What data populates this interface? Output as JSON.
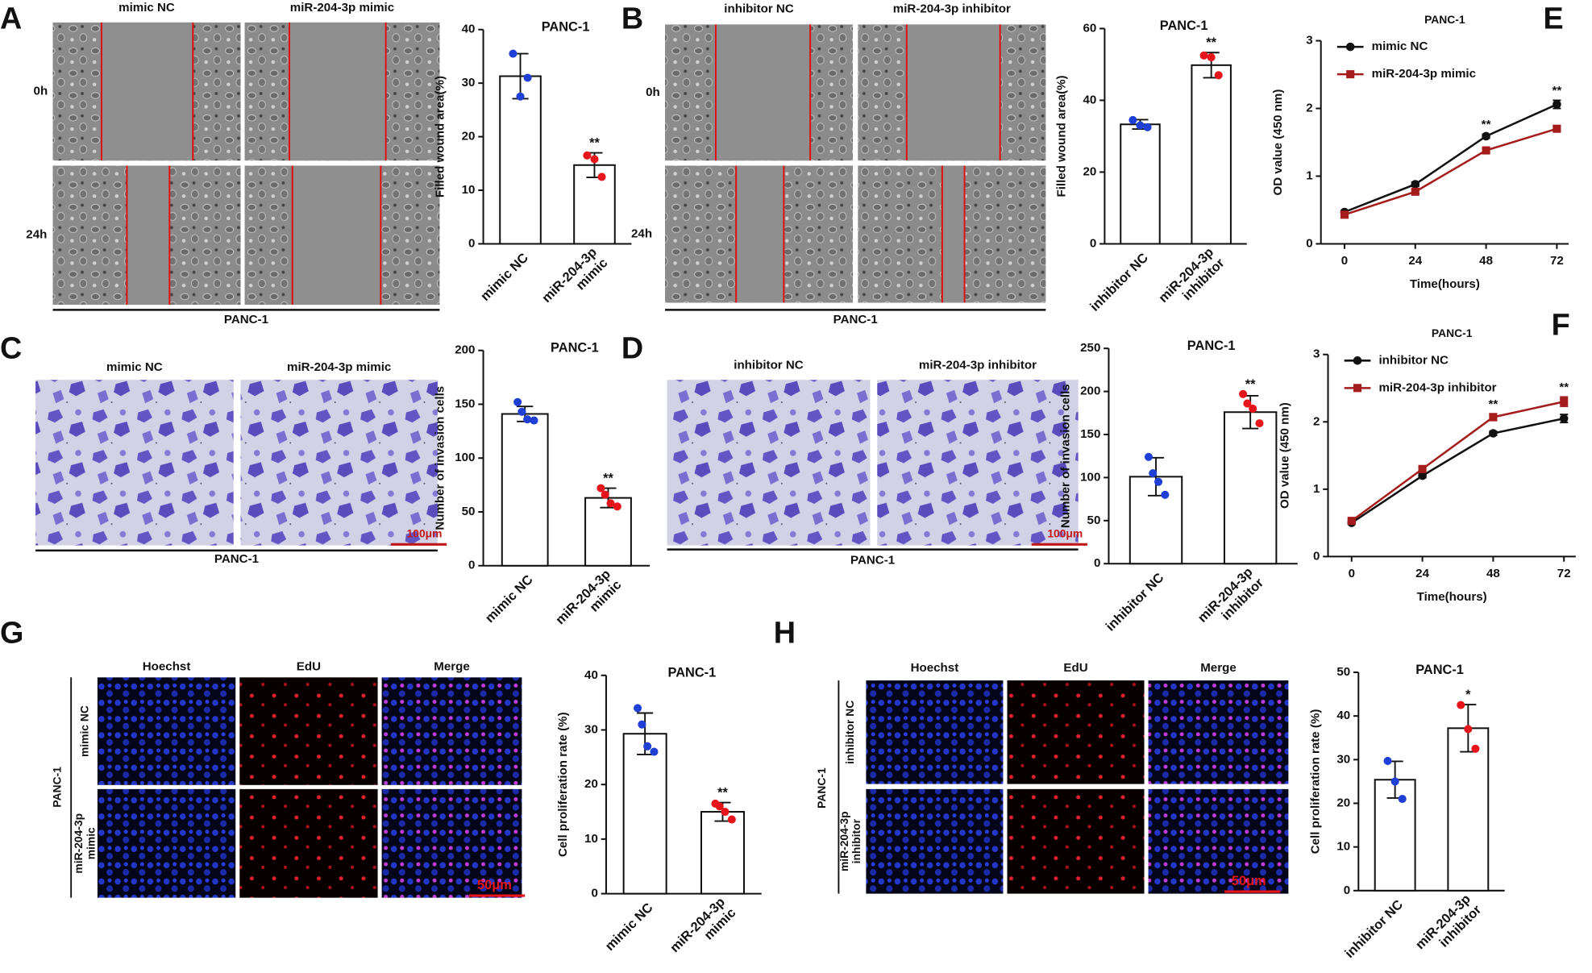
{
  "panels": [
    {
      "letter": "A",
      "column_labels": [
        "mimic NC",
        "miR-204-3p mimic"
      ],
      "row_labels": [
        "0h",
        "24h"
      ],
      "caption": "PANC-1"
    },
    {
      "letter": "B",
      "column_labels": [
        "inhibitor NC",
        "miR-204-3p inhibitor"
      ],
      "row_labels": [
        "0h",
        "24h"
      ],
      "caption": "PANC-1"
    },
    {
      "letter": "C",
      "column_labels": [
        "mimic NC",
        "miR-204-3p mimic"
      ],
      "caption": "PANC-1",
      "scale_bar": "100μm"
    },
    {
      "letter": "D",
      "column_labels": [
        "inhibitor NC",
        "miR-204-3p inhibitor"
      ],
      "caption": "PANC-1",
      "scale_bar": "100μm"
    },
    {
      "letter": "G",
      "column_labels": [
        "Hoechst",
        "EdU",
        "Merge"
      ],
      "row_labels": [
        "mimic NC",
        "miR-204-3p mimic"
      ],
      "caption": "PANC-1",
      "scale_bar": "50μm"
    },
    {
      "letter": "H",
      "column_labels": [
        "Hoechst",
        "EdU",
        "Merge"
      ],
      "row_labels": [
        "inhibitor NC",
        "miR-204-3p inhibitor"
      ],
      "caption": "PANC-1",
      "scale_bar": "50μm"
    }
  ],
  "chart_data": [
    {
      "type": "bar",
      "title": "PANC-1",
      "y_label": "Filled wound area(%)",
      "categories": [
        "mimic NC",
        "miR-204-3p mimic"
      ],
      "values": [
        31.3,
        14.7
      ],
      "errors": [
        4.2,
        2.3
      ],
      "points": [
        [
          35.5,
          27.5,
          31
        ],
        [
          16.5,
          15.8,
          12.5
        ]
      ],
      "point_colors": [
        "#1f3fd6",
        "#e8141c"
      ],
      "annotations": [
        null,
        "**"
      ],
      "ylim": [
        0,
        40
      ],
      "yticks": [
        0,
        10,
        20,
        30,
        40
      ]
    },
    {
      "type": "bar",
      "title": "PANC-1",
      "y_label": "Filled wound area(%)",
      "categories": [
        "inhibitor NC",
        "miR-204-3p inhibitor"
      ],
      "values": [
        33.3,
        49.8
      ],
      "errors": [
        1.3,
        3.5
      ],
      "points": [
        [
          34.5,
          33,
          32.5
        ],
        [
          52.5,
          52,
          47
        ]
      ],
      "point_colors": [
        "#1f3fd6",
        "#e8141c"
      ],
      "annotations": [
        null,
        "**"
      ],
      "ylim": [
        0,
        60
      ],
      "yticks": [
        0,
        20,
        40,
        60
      ]
    },
    {
      "type": "line",
      "letter": "E",
      "title": "PANC-1",
      "x_label": "Time(hours)",
      "y_label": "OD value (450 nm)",
      "x": [
        0,
        24,
        48,
        72
      ],
      "xlim": [
        -8,
        76
      ],
      "xticks": [
        0,
        24,
        48,
        72
      ],
      "ylim": [
        0,
        3
      ],
      "yticks": [
        0,
        1,
        2,
        3
      ],
      "series": [
        {
          "name": "mimic NC",
          "color": "#111111",
          "marker": "circle",
          "values": [
            0.47,
            0.88,
            1.59,
            2.06
          ],
          "errors": [
            0.02,
            0.03,
            0.03,
            0.06
          ]
        },
        {
          "name": "miR-204-3p mimic",
          "color": "#a51c1c",
          "marker": "square",
          "values": [
            0.43,
            0.77,
            1.38,
            1.7
          ],
          "errors": [
            0.02,
            0.03,
            0.03,
            0.04
          ]
        }
      ],
      "annotations": [
        null,
        null,
        "**",
        "**"
      ]
    },
    {
      "type": "bar",
      "title": "PANC-1",
      "y_label": "Number of invasion cells",
      "categories": [
        "mimic NC",
        "miR-204-3p mimic"
      ],
      "values": [
        141,
        63
      ],
      "errors": [
        7,
        9
      ],
      "points": [
        [
          152,
          143,
          136,
          135
        ],
        [
          72,
          66,
          58,
          55
        ]
      ],
      "point_colors": [
        "#1f3fd6",
        "#e8141c"
      ],
      "annotations": [
        null,
        "**"
      ],
      "ylim": [
        0,
        200
      ],
      "yticks": [
        0,
        50,
        100,
        150,
        200
      ]
    },
    {
      "type": "bar",
      "title": "PANC-1",
      "y_label": "Number of invasion cells",
      "categories": [
        "inhibitor NC",
        "miR-204-3p inhibitor"
      ],
      "values": [
        101,
        176
      ],
      "errors": [
        22,
        19
      ],
      "points": [
        [
          124,
          105,
          95,
          80
        ],
        [
          197,
          186,
          180,
          163
        ]
      ],
      "point_colors": [
        "#1f3fd6",
        "#e8141c"
      ],
      "annotations": [
        null,
        "**"
      ],
      "ylim": [
        0,
        250
      ],
      "yticks": [
        0,
        50,
        100,
        150,
        200,
        250
      ]
    },
    {
      "type": "line",
      "letter": "F",
      "title": "PANC-1",
      "x_label": "Time(hours)",
      "y_label": "OD value (450 nm)",
      "x": [
        0,
        24,
        48,
        72
      ],
      "xlim": [
        -8,
        76
      ],
      "xticks": [
        0,
        24,
        48,
        72
      ],
      "ylim": [
        0,
        3
      ],
      "yticks": [
        0,
        1,
        2,
        3
      ],
      "series": [
        {
          "name": "inhibitor NC",
          "color": "#111111",
          "marker": "circle",
          "values": [
            0.5,
            1.2,
            1.83,
            2.05
          ],
          "errors": [
            0.02,
            0.03,
            0.03,
            0.06
          ]
        },
        {
          "name": "miR-204-3p inhibitor",
          "color": "#a51c1c",
          "marker": "square",
          "values": [
            0.53,
            1.3,
            2.07,
            2.3
          ],
          "errors": [
            0.02,
            0.03,
            0.05,
            0.07
          ]
        }
      ],
      "annotations": [
        null,
        null,
        "**",
        "**"
      ]
    },
    {
      "type": "bar",
      "title": "PANC-1",
      "y_label": "Cell proliferation rate (%)",
      "categories": [
        "mimic NC",
        "miR-204-3p mimic"
      ],
      "values": [
        29.3,
        15
      ],
      "errors": [
        3.8,
        1.7
      ],
      "points": [
        [
          34,
          31,
          27,
          26
        ],
        [
          16.5,
          16,
          15,
          13.6
        ]
      ],
      "point_colors": [
        "#1f3fd6",
        "#e8141c"
      ],
      "annotations": [
        null,
        "**"
      ],
      "ylim": [
        0,
        40
      ],
      "yticks": [
        0,
        10,
        20,
        30,
        40
      ]
    },
    {
      "type": "bar",
      "title": "PANC-1",
      "y_label": "Cell proliferation rate (%)",
      "categories": [
        "inhibitor NC",
        "miR-204-3p inhibitor"
      ],
      "values": [
        25.4,
        37.2
      ],
      "errors": [
        4.2,
        5.4
      ],
      "points": [
        [
          29.7,
          25,
          21
        ],
        [
          42.5,
          37,
          32.5
        ]
      ],
      "point_colors": [
        "#1f3fd6",
        "#e8141c"
      ],
      "annotations": [
        null,
        "*"
      ],
      "ylim": [
        0,
        50
      ],
      "yticks": [
        0,
        10,
        20,
        30,
        40,
        50
      ]
    }
  ]
}
